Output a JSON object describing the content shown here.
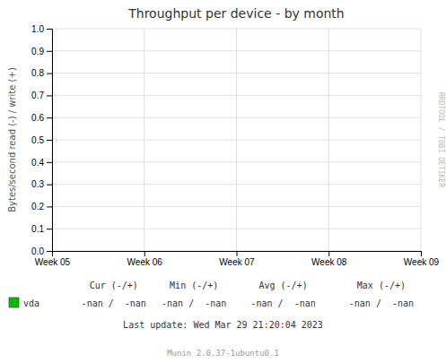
{
  "chart_data": {
    "type": "line",
    "title": "Throughput per device - by month",
    "y_label": "Bytes/second read (-) / write (+)",
    "categories": [
      "Week 05",
      "Week 06",
      "Week 07",
      "Week 08",
      "Week 09"
    ],
    "series": [
      {
        "name": "vda",
        "color": "#00bb00",
        "values": [
          null,
          null,
          null,
          null,
          null
        ]
      }
    ],
    "ylim": [
      0.0,
      1.0
    ],
    "yticks": [
      {
        "value": 0.0,
        "label": "0.0"
      },
      0.1,
      0.2,
      0.3,
      0.4,
      0.5,
      0.6,
      0.7,
      0.8,
      0.9,
      {
        "value": 1.0,
        "label": "1.0"
      }
    ],
    "grid": true,
    "legend": "bottom",
    "annotations": [
      "Cur (-/+)",
      "Min (-/+)",
      "Avg (-/+)",
      "Max (-/+)",
      "-nan /  -nan",
      "-nan /  -nan",
      "-nan /  -nan",
      "-nan /  -nan",
      "Last update: Wed Mar 29 21:20:04 2023",
      "Munin 2.0.37-1ubuntu0.1",
      "RRDTOOL / TOBI OETIKER"
    ]
  }
}
